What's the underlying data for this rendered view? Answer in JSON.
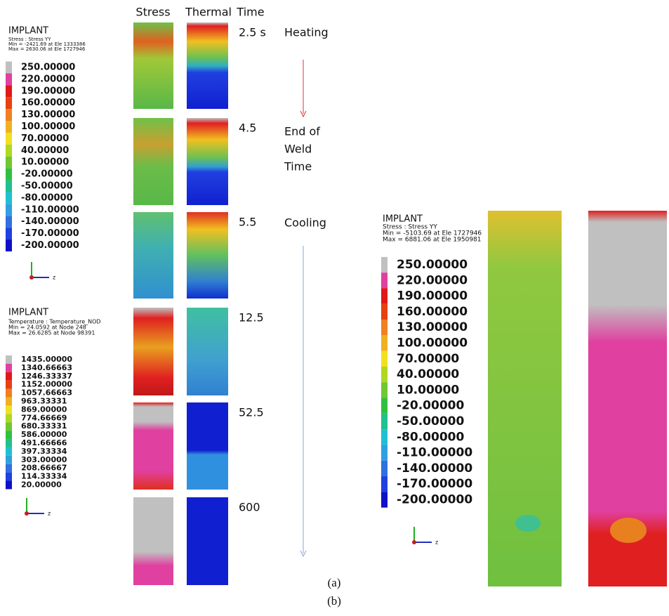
{
  "column_headers": [
    "Stress",
    "Thermal",
    "Time"
  ],
  "rows": [
    {
      "time": "2.5 s"
    },
    {
      "time": "4.5"
    },
    {
      "time": "5.5"
    },
    {
      "time": "12.5"
    },
    {
      "time": "52.5"
    },
    {
      "time": "600"
    }
  ],
  "phases": {
    "heating": "Heating",
    "end_of_weld": [
      "End of",
      "Weld",
      "Time"
    ],
    "cooling": "Cooling"
  },
  "legend_stress": {
    "title": "IMPLANT",
    "lines": [
      "Stress : Stress YY",
      "Min = -2421.69 at Ele 1333386",
      "Max = 2630.06 at Ele 1727946"
    ],
    "values": [
      "250.00000",
      "220.00000",
      "190.00000",
      "160.00000",
      "130.00000",
      "100.00000",
      "70.00000",
      "40.00000",
      "10.00000",
      "-20.00000",
      "-50.00000",
      "-80.00000",
      "-110.00000",
      "-140.00000",
      "-170.00000",
      "-200.00000"
    ],
    "axis_label": "z"
  },
  "legend_temperature": {
    "title": "IMPLANT",
    "lines": [
      "Temperature : Temperature_NOD",
      "Min = 24.0592 at Node 248",
      "Max = 26.6285 at Node 98391"
    ],
    "values": [
      "1435.00000",
      "1340.66663",
      "1246.33337",
      "1152.00000",
      "1057.66663",
      "963.33331",
      "869.00000",
      "774.66669",
      "680.33331",
      "586.00000",
      "491.66666",
      "397.33334",
      "303.00000",
      "208.66667",
      "114.33334",
      "20.00000"
    ],
    "axis_label": "z"
  },
  "legend_right": {
    "title": "IMPLANT",
    "lines": [
      "Stress : Stress YY",
      "Min = -5103.69 at Ele 1727946",
      "Max = 6881.06 at Ele 1950981"
    ],
    "values": [
      "250.00000",
      "220.00000",
      "190.00000",
      "160.00000",
      "130.00000",
      "100.00000",
      "70.00000",
      "40.00000",
      "10.00000",
      "-20.00000",
      "-50.00000",
      "-80.00000",
      "-110.00000",
      "-140.00000",
      "-170.00000",
      "-200.00000"
    ],
    "axis_label": "z"
  },
  "captions": [
    "(a)",
    "(b)"
  ]
}
